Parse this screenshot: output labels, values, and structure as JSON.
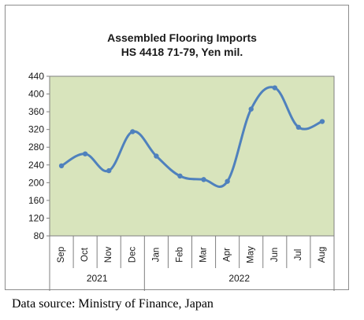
{
  "chart_data": {
    "type": "line",
    "title_lines": [
      "Assembled Flooring Imports",
      "HS 4418 71-79, Yen mil."
    ],
    "categories": [
      "Sep",
      "Oct",
      "Nov",
      "Dec",
      "Jan",
      "Feb",
      "Mar",
      "Apr",
      "May",
      "Jun",
      "Jul",
      "Aug"
    ],
    "year_groups": [
      {
        "label": "2021",
        "count": 4
      },
      {
        "label": "2022",
        "count": 8
      }
    ],
    "series": [
      {
        "values": [
          238,
          265,
          227,
          315,
          260,
          215,
          207,
          203,
          366,
          414,
          325,
          338
        ]
      }
    ],
    "ylim": [
      80,
      440
    ],
    "yticks": [
      80,
      120,
      160,
      200,
      240,
      280,
      320,
      360,
      400,
      440
    ],
    "grid": false,
    "legend": "none"
  },
  "colors": {
    "plot_background": "#d8e4bc",
    "series_line": "#4f81bd",
    "axis": "#7f7f7f",
    "tick_text": "#1a1a1a"
  },
  "source_note": "Data source: Ministry of Finance, Japan"
}
